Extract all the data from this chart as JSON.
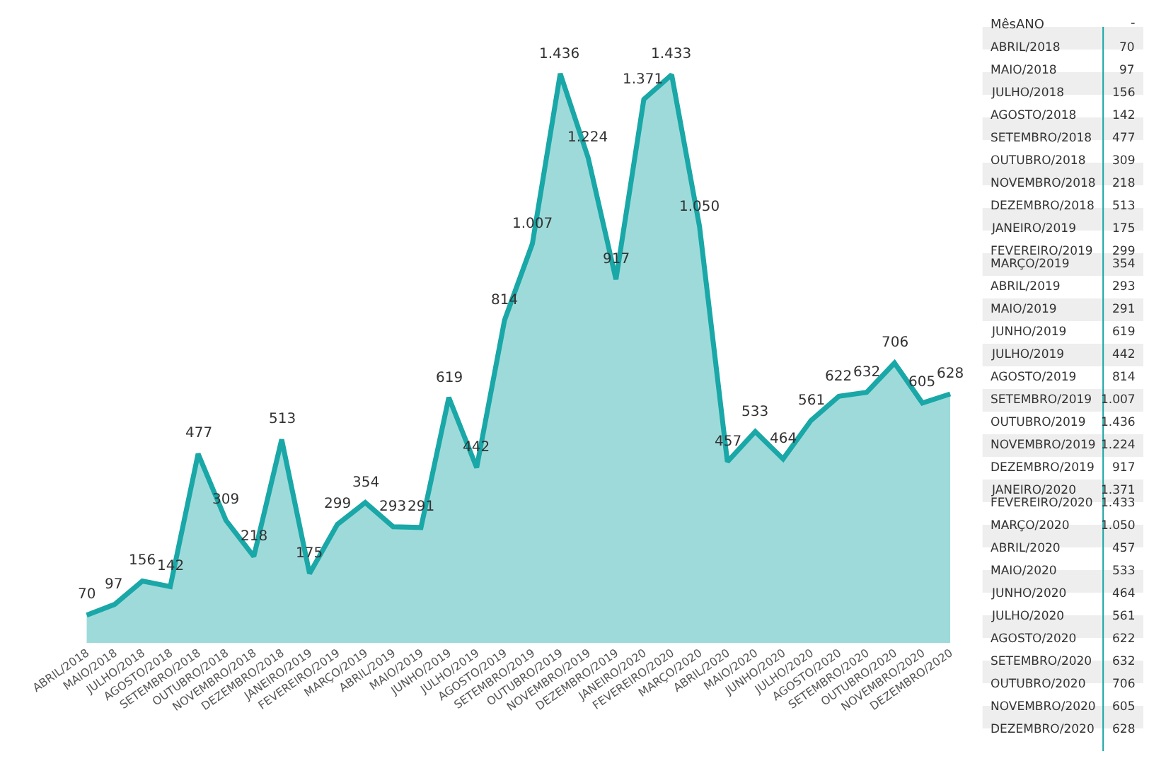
{
  "chart_data": {
    "type": "area",
    "categories": [
      "ABRIL/2018",
      "MAIO/2018",
      "JULHO/2018",
      "AGOSTO/2018",
      "SETEMBRO/2018",
      "OUTUBRO/2018",
      "NOVEMBRO/2018",
      "DEZEMBRO/2018",
      "JANEIRO/2019",
      "FEVEREIRO/2019",
      "MARÇO/2019",
      "ABRIL/2019",
      "MAIO/2019",
      "JUNHO/2019",
      "JULHO/2019",
      "AGOSTO/2019",
      "SETEMBRO/2019",
      "OUTUBRO/2019",
      "NOVEMBRO/2019",
      "DEZEMBRO/2019",
      "JANEIRO/2020",
      "FEVEREIRO/2020",
      "MARÇO/2020",
      "ABRIL/2020",
      "MAIO/2020",
      "JUNHO/2020",
      "JULHO/2020",
      "AGOSTO/2020",
      "SETEMBRO/2020",
      "OUTUBRO/2020",
      "NOVEMBRO/2020",
      "DEZEMBRO/2020"
    ],
    "series": [
      {
        "color": "#1aa7a7",
        "values": [
          70,
          97,
          156,
          142,
          477,
          309,
          218,
          513,
          175,
          299,
          354,
          293,
          291,
          619,
          442,
          814,
          1007,
          1436,
          1224,
          917,
          1371,
          1433,
          1050,
          457,
          533,
          464,
          561,
          622,
          632,
          706,
          605,
          628
        ],
        "value_labels": [
          "70",
          "97",
          "156",
          "142",
          "477",
          "309",
          "218",
          "513",
          "175",
          "299",
          "354",
          "293",
          "291",
          "619",
          "442",
          "814",
          "1.007",
          "1.436",
          "1.224",
          "917",
          "1.371",
          "1.433",
          "1.050",
          "457",
          "533",
          "464",
          "561",
          "622",
          "632",
          "706",
          "605",
          "628"
        ]
      }
    ],
    "annotations": [
      "MêsANO",
      "-"
    ],
    "legend": false,
    "marker": "none",
    "line_style": "solid",
    "tick_labels": "x"
  }
}
